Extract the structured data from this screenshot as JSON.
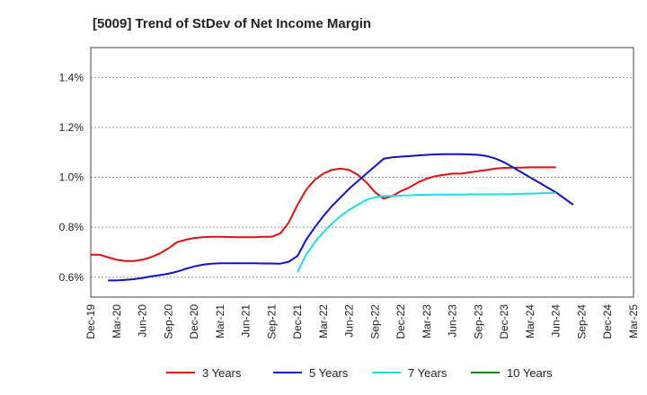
{
  "chart_data": {
    "type": "line",
    "title": "[5009]  Trend of StDev of Net Income Margin",
    "xlabel": "",
    "ylabel": "",
    "y_ticks": [
      "0.6%",
      "0.8%",
      "1.0%",
      "1.2%",
      "1.4%"
    ],
    "y_tick_values": [
      0.6,
      0.8,
      1.0,
      1.2,
      1.4
    ],
    "ylim": [
      0.52,
      1.52
    ],
    "x_ticks": [
      "Dec-19",
      "Mar-20",
      "Jun-20",
      "Sep-20",
      "Dec-20",
      "Mar-21",
      "Jun-21",
      "Sep-21",
      "Dec-21",
      "Mar-22",
      "Jun-22",
      "Sep-22",
      "Dec-22",
      "Mar-23",
      "Jun-23",
      "Sep-23",
      "Dec-23",
      "Mar-24",
      "Jun-24",
      "Sep-24",
      "Dec-24",
      "Mar-25"
    ],
    "grid": "horizontal dashed",
    "legend_position": "bottom",
    "series": [
      {
        "name": "3 Years",
        "color": "#dd1111",
        "start_index": 0,
        "values": [
          0.69,
          0.69,
          0.68,
          0.67,
          0.665,
          0.665,
          0.67,
          0.68,
          0.695,
          0.715,
          0.74,
          0.75,
          0.757,
          0.76,
          0.762,
          0.762,
          0.761,
          0.76,
          0.76,
          0.76,
          0.762,
          0.762,
          0.775,
          0.82,
          0.89,
          0.95,
          0.99,
          1.015,
          1.03,
          1.035,
          1.03,
          1.01,
          0.98,
          0.94,
          0.915,
          0.925,
          0.945,
          0.96,
          0.98,
          0.995,
          1.005,
          1.01,
          1.015,
          1.015,
          1.02,
          1.025,
          1.03,
          1.035,
          1.038,
          1.039,
          1.039,
          1.04,
          1.04,
          1.04,
          1.04
        ]
      },
      {
        "name": "5 Years",
        "color": "#1111cc",
        "start_index": 2,
        "values": [
          0.587,
          0.587,
          0.589,
          0.592,
          0.597,
          0.603,
          0.608,
          0.614,
          0.622,
          0.633,
          0.643,
          0.65,
          0.654,
          0.656,
          0.656,
          0.656,
          0.656,
          0.656,
          0.655,
          0.655,
          0.654,
          0.662,
          0.685,
          0.75,
          0.8,
          0.845,
          0.885,
          0.92,
          0.955,
          0.985,
          1.015,
          1.045,
          1.075,
          1.08,
          1.083,
          1.085,
          1.088,
          1.09,
          1.092,
          1.093,
          1.093,
          1.093,
          1.092,
          1.09,
          1.085,
          1.075,
          1.06,
          1.04,
          1.02,
          1.0,
          0.98,
          0.96,
          0.94,
          0.915,
          0.89
        ]
      },
      {
        "name": "7 Years",
        "color": "#22dddd",
        "start_index": 24,
        "values": [
          0.62,
          0.69,
          0.74,
          0.78,
          0.815,
          0.845,
          0.87,
          0.89,
          0.91,
          0.92,
          0.925,
          0.925,
          0.927,
          0.928,
          0.93,
          0.93,
          0.931,
          0.931,
          0.931,
          0.931,
          0.932,
          0.932,
          0.932,
          0.932,
          0.933,
          0.933,
          0.934,
          0.935,
          0.936,
          0.937,
          0.938
        ]
      },
      {
        "name": "10 Years",
        "color": "#118811",
        "start_index": 0,
        "values": []
      }
    ]
  }
}
